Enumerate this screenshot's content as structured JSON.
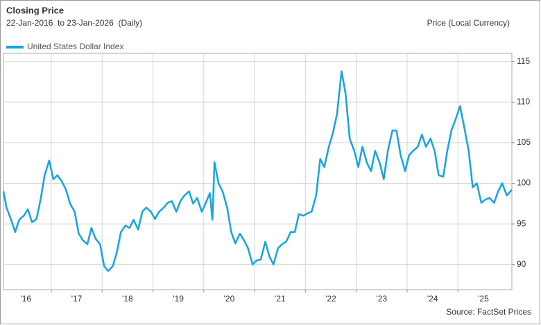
{
  "chart_data": {
    "type": "line",
    "title": "Closing Price",
    "subtitle": "22-Jan-2016  to 23-Jan-2026  (Daily)",
    "y_axis_label": "Price (Local Currency)",
    "source": "Source: FactSet Prices",
    "x": [
      2016.06,
      2016.12,
      2016.21,
      2016.29,
      2016.37,
      2016.46,
      2016.54,
      2016.62,
      2016.71,
      2016.79,
      2016.87,
      2016.96,
      2017.04,
      2017.12,
      2017.21,
      2017.29,
      2017.37,
      2017.46,
      2017.54,
      2017.62,
      2017.71,
      2017.79,
      2017.87,
      2017.96,
      2018.04,
      2018.12,
      2018.21,
      2018.29,
      2018.37,
      2018.46,
      2018.54,
      2018.62,
      2018.71,
      2018.79,
      2018.87,
      2018.96,
      2019.04,
      2019.12,
      2019.21,
      2019.29,
      2019.37,
      2019.46,
      2019.54,
      2019.62,
      2019.71,
      2019.79,
      2019.87,
      2019.96,
      2020.04,
      2020.12,
      2020.17,
      2020.21,
      2020.29,
      2020.37,
      2020.46,
      2020.54,
      2020.62,
      2020.71,
      2020.79,
      2020.87,
      2020.96,
      2021.04,
      2021.12,
      2021.21,
      2021.29,
      2021.37,
      2021.46,
      2021.54,
      2021.62,
      2021.71,
      2021.79,
      2021.87,
      2021.96,
      2022.04,
      2022.12,
      2022.21,
      2022.29,
      2022.37,
      2022.46,
      2022.54,
      2022.62,
      2022.71,
      2022.79,
      2022.87,
      2022.96,
      2023.04,
      2023.12,
      2023.21,
      2023.29,
      2023.37,
      2023.46,
      2023.54,
      2023.62,
      2023.71,
      2023.79,
      2023.87,
      2023.96,
      2024.04,
      2024.12,
      2024.21,
      2024.29,
      2024.37,
      2024.46,
      2024.54,
      2024.62,
      2024.71,
      2024.79,
      2024.87,
      2024.96,
      2025.04,
      2025.12,
      2025.21,
      2025.29,
      2025.37,
      2025.46,
      2025.54,
      2025.62,
      2025.71,
      2025.79,
      2025.87,
      2025.96,
      2026.06
    ],
    "series": [
      {
        "name": "United States Dollar Index",
        "color": "#12a4e6",
        "values": [
          99.0,
          97.0,
          95.5,
          94.0,
          95.5,
          96.0,
          96.8,
          95.2,
          95.6,
          98.0,
          101.0,
          102.8,
          100.5,
          101.0,
          100.2,
          99.2,
          97.5,
          96.5,
          93.8,
          93.0,
          92.5,
          94.5,
          93.2,
          92.5,
          89.8,
          89.2,
          89.8,
          91.5,
          94.0,
          94.8,
          94.5,
          95.5,
          94.3,
          96.5,
          97.0,
          96.5,
          95.6,
          96.5,
          97.0,
          97.6,
          97.8,
          96.5,
          97.8,
          98.5,
          99.0,
          97.5,
          98.2,
          96.5,
          97.6,
          98.8,
          95.5,
          102.6,
          100.0,
          99.0,
          97.0,
          94.0,
          92.6,
          93.8,
          93.0,
          92.0,
          90.0,
          90.5,
          90.6,
          92.8,
          91.0,
          90.0,
          92.0,
          92.5,
          92.8,
          94.0,
          94.0,
          96.2,
          96.0,
          96.3,
          96.5,
          98.5,
          103.0,
          102.0,
          104.5,
          106.2,
          108.5,
          113.8,
          111.0,
          105.5,
          104.0,
          102.0,
          104.5,
          102.5,
          101.5,
          104.0,
          102.5,
          100.5,
          104.0,
          106.5,
          106.5,
          103.5,
          101.5,
          103.5,
          104.0,
          104.5,
          106.0,
          104.5,
          105.5,
          104.0,
          101.0,
          100.8,
          104.0,
          106.5,
          108.0,
          109.5,
          107.0,
          104.0,
          99.5,
          100.0,
          97.6,
          98.0,
          98.2,
          97.6,
          99.0,
          100.0,
          98.5,
          99.2
        ]
      }
    ],
    "xlim": [
      2016.06,
      2026.06
    ],
    "xticks": [
      {
        "value": 2016.5,
        "label": "'16"
      },
      {
        "value": 2017.5,
        "label": "'17"
      },
      {
        "value": 2018.5,
        "label": "'18"
      },
      {
        "value": 2019.5,
        "label": "'19"
      },
      {
        "value": 2020.5,
        "label": "'20"
      },
      {
        "value": 2021.5,
        "label": "'21"
      },
      {
        "value": 2022.5,
        "label": "'22"
      },
      {
        "value": 2023.5,
        "label": "'23"
      },
      {
        "value": 2024.5,
        "label": "'24"
      },
      {
        "value": 2025.5,
        "label": "'25"
      }
    ],
    "xgrid": [
      2017,
      2018,
      2019,
      2020,
      2021,
      2022,
      2023,
      2024,
      2025
    ],
    "ylim": [
      86.9,
      116.0
    ],
    "yticks": [
      90,
      95,
      100,
      105,
      110,
      115
    ],
    "grid": true
  }
}
